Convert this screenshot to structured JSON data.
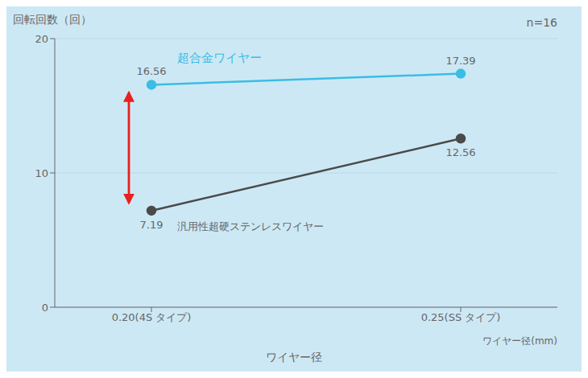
{
  "chart_data": {
    "type": "line",
    "title_note": "n=16",
    "ylabel": "回転回数（回）",
    "xlabel_right": "ワイヤー径(mm)",
    "xlabel_bottom": "ワイヤー径",
    "categories": [
      "0.20(4S タイプ)",
      "0.25(SS タイプ)"
    ],
    "series": [
      {
        "name": "超合金ワイヤー",
        "color": "#3bbde4",
        "values": [
          16.56,
          17.39
        ],
        "marker": "circle",
        "line_style": "solid"
      },
      {
        "name": "汎用性超硬ステンレスワイヤー",
        "color": "#4a4a4a",
        "values": [
          7.19,
          12.56
        ],
        "marker": "circle",
        "line_style": "solid"
      }
    ],
    "ylim": [
      0,
      20
    ],
    "yticks": [
      0,
      10,
      20
    ],
    "grid": true,
    "data_labels": true
  }
}
